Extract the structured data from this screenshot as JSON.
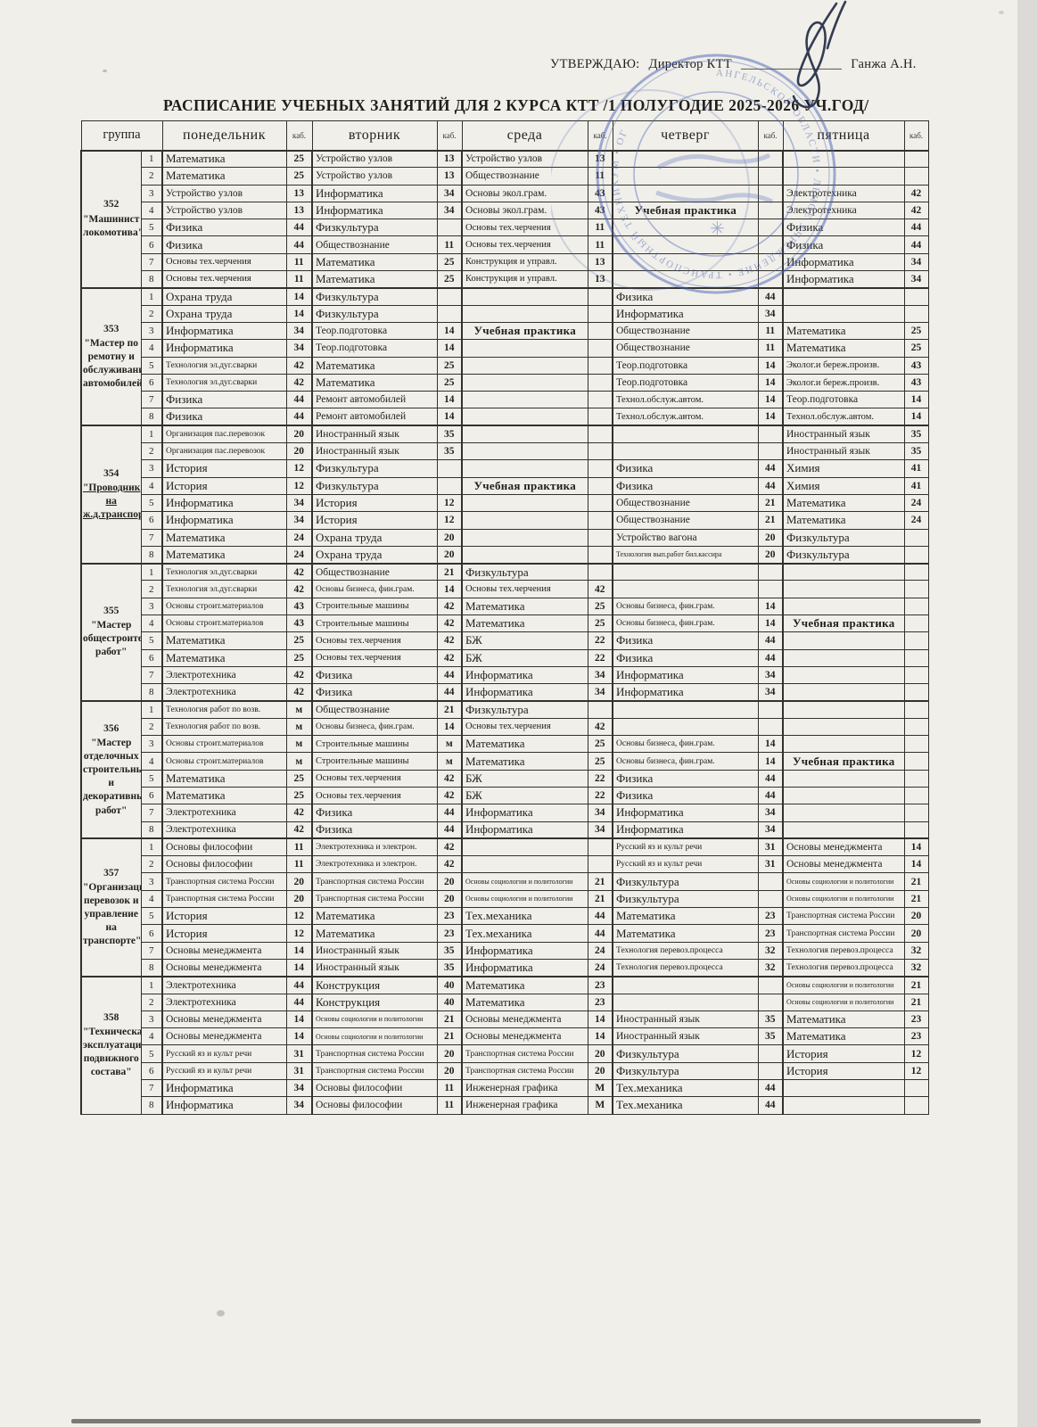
{
  "header": {
    "approve_label": "УТВЕРЖДАЮ:",
    "approve_role": "Директор  КТТ",
    "approve_line": "_______________",
    "approve_name": "Ганжа А.Н.",
    "title": "РАСПИСАНИЕ УЧЕБНЫХ ЗАНЯТИЙ ДЛЯ 2 КУРСА КТТ /1 ПОЛУГОДИЕ 2025-2026 УЧ.ГОД/"
  },
  "stamp": {
    "ring_text": "АНГЕЛЬСКОЙ ОБЛАСТИ • ЛЬНОЕ УЧРЕЖДЕНИЕ • ТРАНСПОРТНЫЙ ТЕХНИКУМ • ОГ",
    "color": "#4a61b8"
  },
  "table": {
    "group_label": "группа",
    "kab_label": "каб.",
    "day_headers": [
      "понедельник",
      "вторник",
      "среда",
      "четверг",
      "пятница"
    ]
  },
  "groups": [
    {
      "num": "352",
      "name": "\"Машинист локомотива\"",
      "underline": false,
      "practice": {
        "row": 4,
        "day": 3,
        "label": "Учебная практика"
      },
      "rows": [
        [
          "Математика",
          "25",
          "Устройство узлов",
          "13",
          "Устройство узлов",
          "13",
          "",
          "",
          "",
          ""
        ],
        [
          "Математика",
          "25",
          "Устройство узлов",
          "13",
          "Обществознание",
          "11",
          "",
          "",
          "",
          ""
        ],
        [
          "Устройство узлов",
          "13",
          "Информатика",
          "34",
          "Основы экол.грам.",
          "43",
          "",
          "",
          "Электротехника",
          "42"
        ],
        [
          "Устройство узлов",
          "13",
          "Информатика",
          "34",
          "Основы экол.грам.",
          "43",
          "",
          "",
          "Электротехника",
          "42"
        ],
        [
          "Физика",
          "44",
          "Физкультура",
          "",
          "Основы тех.черчения",
          "11",
          "",
          "",
          "Физика",
          "44"
        ],
        [
          "Физика",
          "44",
          "Обществознание",
          "11",
          "Основы тех.черчения",
          "11",
          "",
          "",
          "Физика",
          "44"
        ],
        [
          "Основы тех.черчения",
          "11",
          "Математика",
          "25",
          "Конструкция и управл.",
          "13",
          "",
          "",
          "Информатика",
          "34"
        ],
        [
          "Основы тех.черчения",
          "11",
          "Математика",
          "25",
          "Конструкция и управл.",
          "13",
          "",
          "",
          "Информатика",
          "34"
        ]
      ]
    },
    {
      "num": "353",
      "name": "\"Мастер по ремотну и обслуживанию автомобилей\"",
      "underline": false,
      "practice": {
        "row": 3,
        "day": 2,
        "label": "Учебная практика"
      },
      "rows": [
        [
          "Охрана труда",
          "14",
          "Физкультура",
          "",
          "",
          "",
          "Физика",
          "44",
          "",
          ""
        ],
        [
          "Охрана труда",
          "14",
          "Физкультура",
          "",
          "",
          "",
          "Информатика",
          "34",
          "",
          ""
        ],
        [
          "Информатика",
          "34",
          "Теор.подготовка",
          "14",
          "",
          "",
          "Обществознание",
          "11",
          "Математика",
          "25"
        ],
        [
          "Информатика",
          "34",
          "Теор.подготовка",
          "14",
          "",
          "",
          "Обществознание",
          "11",
          "Математика",
          "25"
        ],
        [
          "Технология эл.дуг.сварки",
          "42",
          "Математика",
          "25",
          "",
          "",
          "Теор.подготовка",
          "14",
          "Эколог.и береж.произв.",
          "43"
        ],
        [
          "Технология эл.дуг.сварки",
          "42",
          "Математика",
          "25",
          "",
          "",
          "Теор.подготовка",
          "14",
          "Эколог.и береж.произв.",
          "43"
        ],
        [
          "Физика",
          "44",
          "Ремонт автомобилей",
          "14",
          "",
          "",
          "Технол.обслуж.автом.",
          "14",
          "Теор.подготовка",
          "14"
        ],
        [
          "Физика",
          "44",
          "Ремонт автомобилей",
          "14",
          "",
          "",
          "Технол.обслуж.автом.",
          "14",
          "Технол.обслуж.автом.",
          "14"
        ]
      ]
    },
    {
      "num": "354",
      "name": "\"Проводник на ж.д.транспорте\"",
      "underline": true,
      "practice": {
        "row": 4,
        "day": 2,
        "label": "Учебная практика"
      },
      "rows": [
        [
          "Организация пас.перевозок",
          "20",
          "Иностранный язык",
          "35",
          "",
          "",
          "",
          "",
          "Иностранный язык",
          "35"
        ],
        [
          "Организация пас.перевозок",
          "20",
          "Иностранный язык",
          "35",
          "",
          "",
          "",
          "",
          "Иностранный язык",
          "35"
        ],
        [
          "История",
          "12",
          "Физкультура",
          "",
          "",
          "",
          "Физика",
          "44",
          "Химия",
          "41"
        ],
        [
          "История",
          "12",
          "Физкультура",
          "",
          "",
          "",
          "Физика",
          "44",
          "Химия",
          "41"
        ],
        [
          "Информатика",
          "34",
          "История",
          "12",
          "",
          "",
          "Обществознание",
          "21",
          "Математика",
          "24"
        ],
        [
          "Информатика",
          "34",
          "История",
          "12",
          "",
          "",
          "Обществознание",
          "21",
          "Математика",
          "24"
        ],
        [
          "Математика",
          "24",
          "Охрана труда",
          "20",
          "",
          "",
          "Устройство вагона",
          "20",
          "Физкультура",
          ""
        ],
        [
          "Математика",
          "24",
          "Охрана труда",
          "20",
          "",
          "",
          "Технология вып.работ бил.кассира",
          "20",
          "Физкультура",
          ""
        ]
      ]
    },
    {
      "num": "355",
      "name": "\"Мастер общестроительных работ\"",
      "underline": false,
      "practice": {
        "row": 4,
        "day": 4,
        "label": "Учебная практика"
      },
      "rows": [
        [
          "Технология эл.дуг.сварки",
          "42",
          "Обществознание",
          "21",
          "Физкультура",
          "",
          "",
          "",
          "",
          ""
        ],
        [
          "Технология эл.дуг.сварки",
          "42",
          "Основы бизнеса, фин.грам.",
          "14",
          "Основы тех.черчения",
          "42",
          "",
          "",
          "",
          ""
        ],
        [
          "Основы строит.материалов",
          "43",
          "Строительные машины",
          "42",
          "Математика",
          "25",
          "Основы бизнеса, фин.грам.",
          "14",
          "",
          ""
        ],
        [
          "Основы строит.материалов",
          "43",
          "Строительные машины",
          "42",
          "Математика",
          "25",
          "Основы бизнеса, фин.грам.",
          "14",
          "",
          ""
        ],
        [
          "Математика",
          "25",
          "Основы тех.черчения",
          "42",
          "БЖ",
          "22",
          "Физика",
          "44",
          "",
          ""
        ],
        [
          "Математика",
          "25",
          "Основы тех.черчения",
          "42",
          "БЖ",
          "22",
          "Физика",
          "44",
          "",
          ""
        ],
        [
          "Электротехника",
          "42",
          "Физика",
          "44",
          "Информатика",
          "34",
          "Информатика",
          "34",
          "",
          ""
        ],
        [
          "Электротехника",
          "42",
          "Физика",
          "44",
          "Информатика",
          "34",
          "Информатика",
          "34",
          "",
          ""
        ]
      ]
    },
    {
      "num": "356",
      "name": "\"Мастер отделочных строительных и декоративных работ\"",
      "underline": false,
      "practice": {
        "row": 4,
        "day": 4,
        "label": "Учебная практика"
      },
      "rows": [
        [
          "Технология работ по возв.",
          "м",
          "Обществознание",
          "21",
          "Физкультура",
          "",
          "",
          "",
          "",
          ""
        ],
        [
          "Технология работ по возв.",
          "м",
          "Основы бизнеса, фин.грам.",
          "14",
          "Основы тех.черчения",
          "42",
          "",
          "",
          "",
          ""
        ],
        [
          "Основы строит.материалов",
          "м",
          "Строительные машины",
          "м",
          "Математика",
          "25",
          "Основы бизнеса, фин.грам.",
          "14",
          "",
          ""
        ],
        [
          "Основы строит.материалов",
          "м",
          "Строительные машины",
          "м",
          "Математика",
          "25",
          "Основы бизнеса, фин.грам.",
          "14",
          "",
          ""
        ],
        [
          "Математика",
          "25",
          "Основы тех.черчения",
          "42",
          "БЖ",
          "22",
          "Физика",
          "44",
          "",
          ""
        ],
        [
          "Математика",
          "25",
          "Основы тех.черчения",
          "42",
          "БЖ",
          "22",
          "Физика",
          "44",
          "",
          ""
        ],
        [
          "Электротехника",
          "42",
          "Физика",
          "44",
          "Информатика",
          "34",
          "Информатика",
          "34",
          "",
          ""
        ],
        [
          "Электротехника",
          "42",
          "Физика",
          "44",
          "Информатика",
          "34",
          "Информатика",
          "34",
          "",
          ""
        ]
      ]
    },
    {
      "num": "357",
      "name": "\"Организация перевозок и управление на транспорте\"",
      "underline": false,
      "practice": null,
      "rows": [
        [
          "Основы философии",
          "11",
          "Электротехника и электрон.",
          "42",
          "",
          "",
          "Русский яз и культ речи",
          "31",
          "Основы менеджмента",
          "14"
        ],
        [
          "Основы философии",
          "11",
          "Электротехника и электрон.",
          "42",
          "",
          "",
          "Русский яз и культ речи",
          "31",
          "Основы менеджмента",
          "14"
        ],
        [
          "Транспортная система России",
          "20",
          "Транспортная система России",
          "20",
          "Основы социологии и политологии",
          "21",
          "Физкультура",
          "",
          "Основы социологии и политологии",
          "21"
        ],
        [
          "Транспортная система России",
          "20",
          "Транспортная система России",
          "20",
          "Основы социологии и политологии",
          "21",
          "Физкультура",
          "",
          "Основы социологии и политологии",
          "21"
        ],
        [
          "История",
          "12",
          "Математика",
          "23",
          "Тех.механика",
          "44",
          "Математика",
          "23",
          "Транспортная система России",
          "20"
        ],
        [
          "История",
          "12",
          "Математика",
          "23",
          "Тех.механика",
          "44",
          "Математика",
          "23",
          "Транспортная система России",
          "20"
        ],
        [
          "Основы менеджмента",
          "14",
          "Иностранный язык",
          "35",
          "Информатика",
          "24",
          "Технология перевоз.процесса",
          "32",
          "Технология перевоз.процесса",
          "32"
        ],
        [
          "Основы менеджмента",
          "14",
          "Иностранный язык",
          "35",
          "Информатика",
          "24",
          "Технология перевоз.процесса",
          "32",
          "Технология перевоз.процесса",
          "32"
        ]
      ]
    },
    {
      "num": "358",
      "name": "\"Техническая эксплуатация подвижного состава\"",
      "underline": false,
      "practice": null,
      "rows": [
        [
          "Электротехника",
          "44",
          "Конструкция",
          "40",
          "Математика",
          "23",
          "",
          "",
          "Основы социологии и политологии",
          "21"
        ],
        [
          "Электротехника",
          "44",
          "Конструкция",
          "40",
          "Математика",
          "23",
          "",
          "",
          "Основы социологии и политологии",
          "21"
        ],
        [
          "Основы менеджмента",
          "14",
          "Основы социологии и политологии",
          "21",
          "Основы менеджмента",
          "14",
          "Иностранный язык",
          "35",
          "Математика",
          "23"
        ],
        [
          "Основы менеджмента",
          "14",
          "Основы социологии и политологии",
          "21",
          "Основы менеджмента",
          "14",
          "Иностранный язык",
          "35",
          "Математика",
          "23"
        ],
        [
          "Русский яз и культ речи",
          "31",
          "Транспортная система России",
          "20",
          "Транспортная система России",
          "20",
          "Физкультура",
          "",
          "История",
          "12"
        ],
        [
          "Русский яз и культ речи",
          "31",
          "Транспортная система России",
          "20",
          "Транспортная система России",
          "20",
          "Физкультура",
          "",
          "История",
          "12"
        ],
        [
          "Информатика",
          "34",
          "Основы философии",
          "11",
          "Инженерная графика",
          "М",
          "Тех.механика",
          "44",
          "",
          ""
        ],
        [
          "Информатика",
          "34",
          "Основы философии",
          "11",
          "Инженерная графика",
          "М",
          "Тех.механика",
          "44",
          "",
          ""
        ]
      ]
    }
  ]
}
